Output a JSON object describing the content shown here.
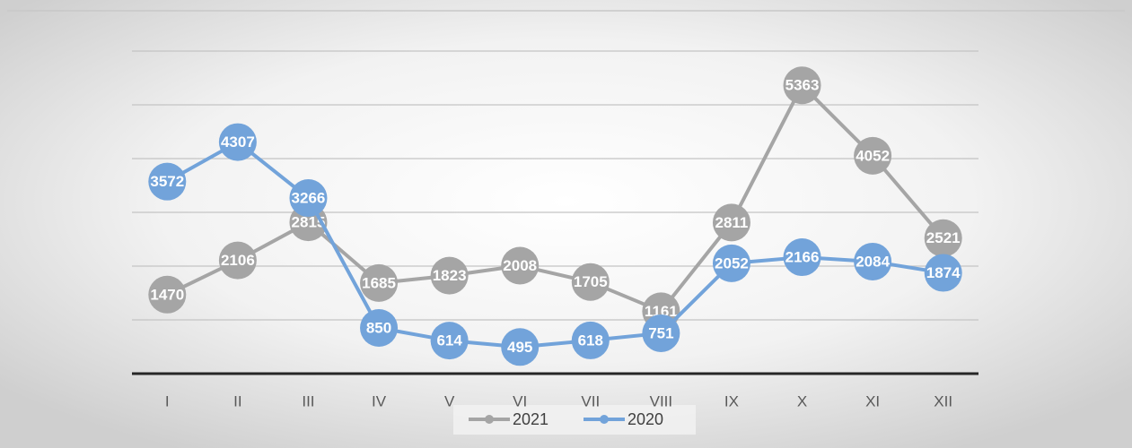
{
  "chart_data": {
    "type": "line",
    "categories": [
      "I",
      "II",
      "III",
      "IV",
      "V",
      "VI",
      "VII",
      "VIII",
      "IX",
      "X",
      "XI",
      "XII"
    ],
    "series": [
      {
        "name": "2021",
        "color": "#a5a5a5",
        "values": [
          1470,
          2106,
          2815,
          1685,
          1823,
          2008,
          1705,
          1161,
          2811,
          5363,
          4052,
          2521
        ]
      },
      {
        "name": "2020",
        "color": "#72a3da",
        "values": [
          3572,
          4307,
          3266,
          850,
          614,
          495,
          618,
          751,
          2052,
          2166,
          2084,
          1874
        ]
      }
    ],
    "ylim": [
      0,
      6000
    ],
    "yticks": [
      0,
      1000,
      2000,
      3000,
      4000,
      5000,
      6000
    ],
    "grid": true,
    "legend": "bottom"
  }
}
